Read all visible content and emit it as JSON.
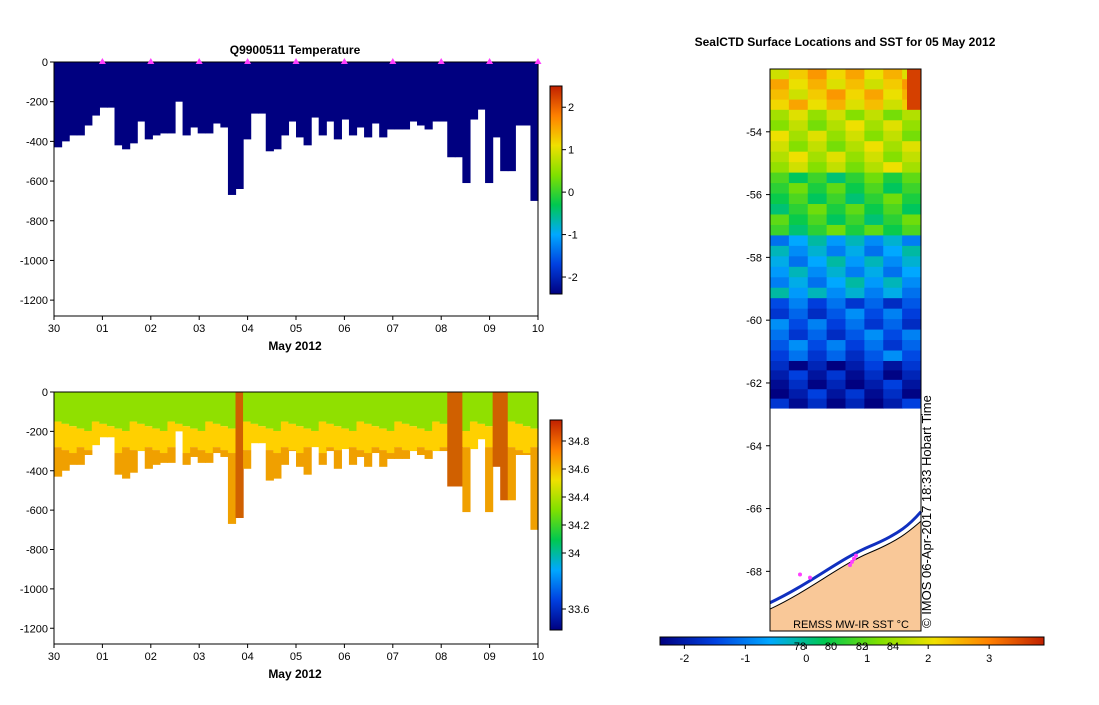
{
  "chart_data": [
    {
      "type": "heatmap",
      "title": "Q9900511  Temperature",
      "xlabel": "May 2012",
      "ylabel": "",
      "x_ticks": [
        "30",
        "01",
        "02",
        "03",
        "04",
        "05",
        "06",
        "07",
        "08",
        "09",
        "10"
      ],
      "xlim": [
        0,
        10
      ],
      "y_ticks": [
        0,
        -200,
        -400,
        -600,
        -800,
        -1000,
        -1200
      ],
      "y_tick_labels": [
        "0",
        "-200",
        "-400",
        "-600",
        "-800",
        "-1000",
        "-1200"
      ],
      "ylim": [
        -1280,
        0
      ],
      "colorbar": {
        "ticks": [
          2,
          1,
          0,
          -1,
          -2
        ],
        "tick_labels": [
          "2",
          "1",
          "0",
          "-1",
          "-2"
        ],
        "range": [
          -2.4,
          2.5
        ],
        "stops": [
          "#000080",
          "#0040e0",
          "#00a8ff",
          "#00c850",
          "#80e000",
          "#f0e000",
          "#ff8000",
          "#c02000"
        ]
      },
      "profile_markers_x": [
        1,
        2,
        3,
        4,
        5,
        6,
        7,
        8,
        9,
        10
      ],
      "marker_color": "#ff40ff",
      "profile_depths": [
        -430,
        -400,
        -370,
        -370,
        -320,
        -270,
        -230,
        -230,
        -420,
        -440,
        -410,
        -300,
        -390,
        -370,
        -360,
        -360,
        -200,
        -370,
        -330,
        -360,
        -360,
        -310,
        -330,
        -670,
        -640,
        -390,
        -260,
        -260,
        -450,
        -440,
        -370,
        -300,
        -380,
        -420,
        -280,
        -370,
        -300,
        -390,
        -290,
        -370,
        -330,
        -380,
        -310,
        -380,
        -340,
        -340,
        -340,
        -300,
        -320,
        -340,
        -300,
        -300,
        -480,
        -480,
        -610,
        -290,
        -240,
        -610,
        -380,
        -550,
        -550,
        -320,
        -320,
        -700
      ]
    },
    {
      "type": "heatmap",
      "title": "",
      "xlabel": "May 2012",
      "ylabel": "",
      "x_ticks": [
        "30",
        "01",
        "02",
        "03",
        "04",
        "05",
        "06",
        "07",
        "08",
        "09",
        "10"
      ],
      "xlim": [
        0,
        10
      ],
      "y_ticks": [
        0,
        -200,
        -400,
        -600,
        -800,
        -1000,
        -1200
      ],
      "y_tick_labels": [
        "0",
        "-200",
        "-400",
        "-600",
        "-800",
        "-1000",
        "-1200"
      ],
      "ylim": [
        -1280,
        0
      ],
      "colorbar": {
        "ticks": [
          34.8,
          34.6,
          34.4,
          34.2,
          34,
          33.6
        ],
        "tick_labels": [
          "34.8",
          "34.6",
          "34.4",
          "34.2",
          "34",
          "33.6"
        ],
        "range": [
          33.45,
          34.95
        ],
        "stops": [
          "#000080",
          "#0040e0",
          "#00a8ff",
          "#00c850",
          "#80e000",
          "#f0e000",
          "#ff8000",
          "#c02000"
        ]
      },
      "profile_depths": [
        -430,
        -400,
        -370,
        -370,
        -320,
        -270,
        -230,
        -230,
        -420,
        -440,
        -410,
        -300,
        -390,
        -370,
        -360,
        -360,
        -200,
        -370,
        -330,
        -360,
        -360,
        -310,
        -330,
        -670,
        -640,
        -390,
        -260,
        -260,
        -450,
        -440,
        -370,
        -300,
        -380,
        -420,
        -280,
        -370,
        -300,
        -390,
        -290,
        -370,
        -330,
        -380,
        -310,
        -380,
        -340,
        -340,
        -340,
        -300,
        -320,
        -340,
        -300,
        -300,
        -480,
        -480,
        -610,
        -290,
        -240,
        -610,
        -380,
        -550,
        -550,
        -320,
        -320,
        -700
      ],
      "surface_color": "#90e000",
      "mid_color": "#ffd000",
      "deep_color": "#f0a000",
      "anomaly_color": "#d06000",
      "anomaly_profiles": [
        24,
        52,
        53,
        58,
        59
      ]
    },
    {
      "type": "heatmap",
      "title": "SealCTD Surface Locations and SST for 05 May 2012",
      "xlabel": "",
      "ylabel": "",
      "y_ticks": [
        -54,
        -56,
        -58,
        -60,
        -62,
        -64,
        -66,
        -68
      ],
      "y_tick_labels": [
        "-54",
        "-56",
        "-58",
        "-60",
        "-62",
        "-64",
        "-66",
        "-68"
      ],
      "ylim": [
        -69.9,
        -52.0
      ],
      "colorbar": {
        "ticks": [
          -2,
          -1,
          0,
          1,
          2,
          3
        ],
        "tick_labels": [
          "-2",
          "-1",
          "0",
          "1",
          "2",
          "3"
        ],
        "range": [
          -2.4,
          3.9
        ],
        "stops": [
          "#000080",
          "#0040e0",
          "#00a8ff",
          "#00c850",
          "#80e000",
          "#f0e000",
          "#ff8000",
          "#c02000"
        ]
      },
      "inset_ticks": [
        "78",
        "80",
        "82",
        "84"
      ],
      "sst_band_edges": [
        -52.0,
        -53.3,
        -55.3,
        -57.3,
        -59.3,
        -61.3,
        -62.8
      ],
      "sst_band_values": [
        2.3,
        1.6,
        0.6,
        -0.6,
        -1.3,
        -2.0
      ],
      "ice_edge": -62.8,
      "land_color": "#f9c898",
      "product_label": "REMSS MW-IR SST °C",
      "watermark": "© IMOS 06-Apr-2017 18:33 Hobart Time"
    }
  ]
}
